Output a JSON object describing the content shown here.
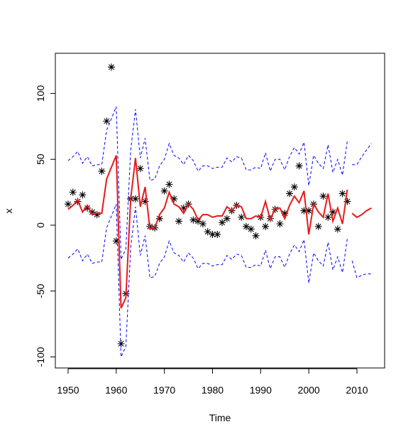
{
  "chart_data": {
    "type": "line",
    "xlabel": "Time",
    "ylabel": "x",
    "xlim": [
      1947.35,
      2015.75
    ],
    "ylim": [
      -108.4,
      130.5
    ],
    "xticks": [
      1950,
      1960,
      1970,
      1980,
      1990,
      2000,
      2010
    ],
    "yticks": [
      -100,
      -50,
      0,
      50,
      100
    ],
    "x": [
      1950,
      1951,
      1952,
      1953,
      1954,
      1955,
      1956,
      1957,
      1958,
      1959,
      1960,
      1961,
      1962,
      1963,
      1964,
      1965,
      1966,
      1967,
      1968,
      1969,
      1970,
      1971,
      1972,
      1973,
      1974,
      1975,
      1976,
      1977,
      1978,
      1979,
      1980,
      1981,
      1982,
      1983,
      1984,
      1985,
      1986,
      1987,
      1988,
      1989,
      1990,
      1991,
      1992,
      1993,
      1994,
      1995,
      1996,
      1997,
      1998,
      1999,
      2000,
      2001,
      2002,
      2003,
      2004,
      2005,
      2006,
      2007,
      2008
    ],
    "series": [
      {
        "color": "#000000",
        "marker": "asterisk",
        "line": false,
        "values": [
          16,
          25,
          18,
          23,
          13,
          10,
          8,
          41,
          79,
          120,
          -12,
          -90,
          -52,
          20,
          20,
          43,
          18,
          -1,
          -2,
          5,
          26,
          31,
          20,
          3,
          13,
          16,
          4,
          3,
          1,
          -5,
          -7,
          -7,
          2,
          5,
          11,
          15,
          6,
          -1,
          -3,
          -8,
          6,
          -1,
          5,
          12,
          1,
          9,
          24,
          29,
          45,
          11,
          11,
          16,
          -1,
          22,
          6,
          10,
          -3,
          24,
          18
        ]
      },
      {
        "color": "#e8191a",
        "line": true,
        "dashed": false,
        "values": [
          12,
          15,
          19,
          10,
          15,
          8,
          9,
          9,
          35,
          44,
          53,
          -63,
          -55,
          20,
          51,
          14,
          29,
          -3,
          -2,
          8,
          13,
          25,
          16,
          14,
          9,
          16,
          12,
          4,
          8,
          8,
          6,
          7,
          7,
          14,
          11,
          15,
          14,
          5,
          5,
          7,
          6,
          18,
          4,
          13,
          13,
          5,
          15,
          22,
          17,
          26,
          -7,
          16,
          10,
          6,
          24,
          3,
          13,
          1,
          27
        ]
      },
      {
        "color": "#0000ff",
        "line": true,
        "dashed": true,
        "values": [
          49,
          52,
          56,
          47,
          52,
          45,
          46,
          46,
          72,
          81,
          90,
          -26,
          -18,
          57,
          88,
          51,
          66,
          34,
          35,
          45,
          50,
          62,
          53,
          51,
          46,
          53,
          49,
          41,
          45,
          45,
          43,
          44,
          44,
          51,
          48,
          52,
          51,
          42,
          42,
          44,
          43,
          55,
          41,
          50,
          50,
          42,
          52,
          59,
          54,
          63,
          30,
          53,
          47,
          43,
          61,
          40,
          50,
          38,
          64
        ]
      },
      {
        "color": "#0000ff",
        "line": true,
        "dashed": true,
        "values": [
          -25,
          -22,
          -18,
          -27,
          -22,
          -29,
          -28,
          -28,
          -2,
          7,
          16,
          -100,
          -92,
          -17,
          14,
          -23,
          -8,
          -40,
          -39,
          -29,
          -24,
          -12,
          -21,
          -23,
          -28,
          -21,
          -25,
          -33,
          -29,
          -29,
          -31,
          -30,
          -30,
          -23,
          -26,
          -22,
          -23,
          -32,
          -32,
          -30,
          -31,
          -19,
          -33,
          -24,
          -24,
          -32,
          -22,
          -15,
          -20,
          -11,
          -44,
          -21,
          -27,
          -31,
          -13,
          -34,
          -24,
          -36,
          -10
        ]
      },
      {
        "color": "#e8191a",
        "line": true,
        "dashed": false,
        "x": [
          2009,
          2010,
          2011,
          2012,
          2013
        ],
        "values": [
          9,
          6,
          8,
          11,
          13
        ]
      },
      {
        "color": "#0000ff",
        "line": true,
        "dashed": true,
        "x": [
          2009,
          2010,
          2011,
          2012,
          2013
        ],
        "values": [
          46,
          46,
          52,
          57,
          62
        ]
      },
      {
        "color": "#0000ff",
        "line": true,
        "dashed": true,
        "x": [
          2009,
          2010,
          2011,
          2012,
          2013
        ],
        "values": [
          -27,
          -40,
          -38,
          -37,
          -37
        ]
      }
    ]
  }
}
